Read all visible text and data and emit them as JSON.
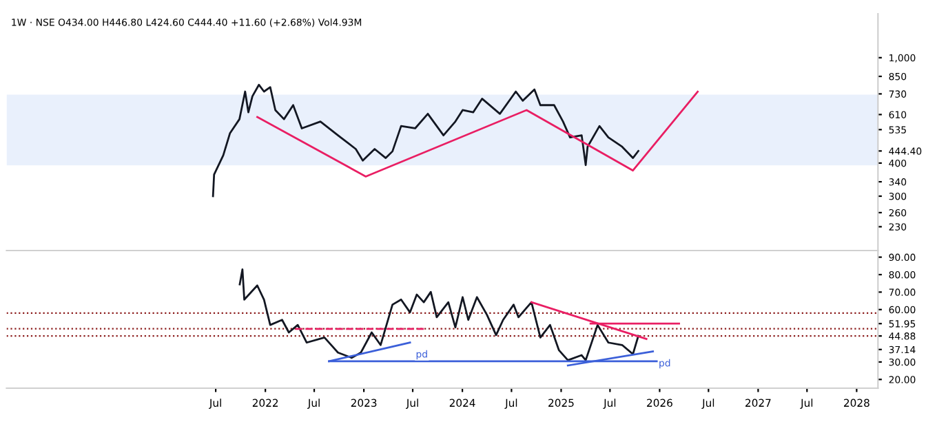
{
  "chart_data": [
    {
      "type": "line",
      "annotations": [
        "1W · NSE O434.00 H446.80 L424.60 C444.40 +11.60 (+2.68%) Vol4.93M"
      ],
      "log": "y",
      "xlim": [
        "2019-05-18",
        "2028-03-20"
      ],
      "ylim": [
        187,
        1465
      ],
      "yticks": [
        230,
        260,
        300,
        340,
        400,
        {
          "value": 444.4,
          "label": "444.40"
        },
        535,
        610,
        730,
        850,
        {
          "value": 1000,
          "label": "1,000"
        }
      ],
      "tick_labels": "y",
      "grid": false,
      "legend": false,
      "bands": [
        {
          "axis": "y",
          "from": 392,
          "to": 725,
          "color": "#dbe6fa"
        }
      ],
      "series": [
        {
          "color": "#131722",
          "x": [
            "2021-06-21",
            "2021-06-25",
            "2021-07-29",
            "2021-08-23",
            "2021-09-27",
            "2021-10-18",
            "2021-10-30",
            "2021-11-14",
            "2021-12-08",
            "2021-12-27",
            "2022-01-19",
            "2022-02-07",
            "2022-03-11",
            "2022-04-14",
            "2022-05-16",
            "2022-07-24",
            "2022-09-27",
            "2022-12-02",
            "2022-12-28",
            "2023-02-10",
            "2023-03-23",
            "2023-04-17",
            "2023-05-19",
            "2023-07-10",
            "2023-08-26",
            "2023-10-23",
            "2023-12-06",
            "2024-01-02",
            "2024-02-10",
            "2024-03-14",
            "2024-05-19",
            "2024-07-17",
            "2024-08-12",
            "2024-09-24",
            "2024-10-16",
            "2024-12-06",
            "2025-01-08",
            "2025-02-03",
            "2025-03-18",
            "2025-04-02",
            "2025-04-09",
            "2025-05-23",
            "2025-06-25",
            "2025-08-15",
            "2025-09-24",
            "2025-10-14"
          ],
          "values": [
            300,
            362,
            428,
            519,
            586,
            745,
            622,
            715,
            790,
            745,
            774,
            634,
            586,
            662,
            541,
            574,
            509,
            452,
            409,
            452,
            418,
            443,
            552,
            541,
            614,
            509,
            574,
            634,
            622,
            700,
            614,
            745,
            688,
            759,
            662,
            662,
            574,
            500,
            509,
            393,
            461,
            552,
            500,
            461,
            418,
            444.4
          ]
        },
        {
          "color": "#e91e63",
          "x": [
            "2021-12-02",
            "2023-01-08",
            "2024-08-26",
            "2025-09-24",
            "2026-05-22"
          ],
          "values": [
            597,
            356,
            634,
            375,
            744
          ]
        }
      ]
    },
    {
      "type": "line",
      "xlim": [
        "2019-05-18",
        "2028-03-20"
      ],
      "ylim": [
        15,
        93
      ],
      "xticks": [
        {
          "value": "2021-07-01",
          "label": "Jul"
        },
        {
          "value": "2022-01-01",
          "label": "2022"
        },
        {
          "value": "2022-07-01",
          "label": "Jul"
        },
        {
          "value": "2023-01-01",
          "label": "2023"
        },
        {
          "value": "2023-07-01",
          "label": "Jul"
        },
        {
          "value": "2024-01-01",
          "label": "2024"
        },
        {
          "value": "2024-07-01",
          "label": "Jul"
        },
        {
          "value": "2025-01-01",
          "label": "2025"
        },
        {
          "value": "2025-07-01",
          "label": "Jul"
        },
        {
          "value": "2026-01-01",
          "label": "2026"
        },
        {
          "value": "2026-07-01",
          "label": "Jul"
        },
        {
          "value": "2027-01-01",
          "label": "2027"
        },
        {
          "value": "2027-07-01",
          "label": "Jul"
        },
        {
          "value": "2028-01-01",
          "label": "2028"
        }
      ],
      "yticks": [
        {
          "value": 20,
          "label": "20.00"
        },
        {
          "value": 30,
          "label": "30.00"
        },
        {
          "value": 37.14,
          "label": "37.14"
        },
        {
          "value": 44.88,
          "label": "44.88"
        },
        {
          "value": 51.95,
          "label": "51.95"
        },
        {
          "value": 60,
          "label": "60.00"
        },
        {
          "value": 70,
          "label": "70.00"
        },
        {
          "value": 80,
          "label": "80.00"
        },
        {
          "value": 90,
          "label": "90.00"
        }
      ],
      "grid": false,
      "legend": false,
      "ref_lines": [
        {
          "axis": "y",
          "value": 58,
          "color": "#8b1a1a",
          "line_style": "dotted"
        },
        {
          "axis": "y",
          "value": 49,
          "color": "#8b1a1a",
          "line_style": "dotted"
        },
        {
          "axis": "y",
          "value": 44.88,
          "color": "#8b1a1a",
          "line_style": "dotted"
        }
      ],
      "annotations": [
        {
          "text": "pd",
          "x": "2023-06-21",
          "y": 41.1
        },
        {
          "text": "pd",
          "x": "2025-12-07",
          "y": 36
        }
      ],
      "series": [
        {
          "color": "#131722",
          "x": [
            "2021-09-28",
            "2021-10-08",
            "2021-10-15",
            "2021-12-02",
            "2021-12-27",
            "2022-01-19",
            "2022-03-04",
            "2022-03-29",
            "2022-05-01",
            "2022-06-03",
            "2022-08-08",
            "2022-09-27",
            "2022-11-17",
            "2022-12-21",
            "2023-01-30",
            "2023-03-04",
            "2023-04-17",
            "2023-05-19",
            "2023-06-21",
            "2023-07-16",
            "2023-08-11",
            "2023-09-06",
            "2023-09-28",
            "2023-11-10",
            "2023-12-06",
            "2024-01-02",
            "2024-01-23",
            "2024-02-24",
            "2024-04-01",
            "2024-05-05",
            "2024-05-31",
            "2024-07-09",
            "2024-07-27",
            "2024-09-13",
            "2024-10-16",
            "2024-11-21",
            "2024-12-24",
            "2025-01-26",
            "2025-03-18",
            "2025-04-02",
            "2025-05-16",
            "2025-06-25",
            "2025-08-15",
            "2025-09-24",
            "2025-10-14"
          ],
          "values": [
            74.4,
            83,
            65.7,
            73.8,
            65.7,
            51.2,
            54.1,
            46.9,
            51.2,
            41.1,
            44,
            35.4,
            32.4,
            35.4,
            46.9,
            39.7,
            62.8,
            65.7,
            58.4,
            68.6,
            64.2,
            70.1,
            55.6,
            64.2,
            49.8,
            67.1,
            54.1,
            67.1,
            57,
            45.4,
            54.1,
            62.8,
            55.6,
            64.2,
            44,
            51.2,
            36.7,
            31,
            33.9,
            31,
            51.2,
            41.1,
            39.7,
            34.5,
            44.9
          ]
        },
        {
          "color": "#3b5fd9",
          "x": [
            "2022-08-25",
            "2023-06-21"
          ],
          "values": [
            30.4,
            41.1
          ]
        },
        {
          "color": "#3b5fd9",
          "x": [
            "2025-01-26",
            "2025-12-07"
          ],
          "values": [
            28,
            36
          ]
        },
        {
          "color": "#e91e63",
          "x": [
            "2024-09-13",
            "2025-11-13"
          ],
          "values": [
            64.2,
            43.2
          ]
        },
        {
          "color": "#e91e63",
          "x": [
            "2025-04-20",
            "2026-03-14"
          ],
          "values": [
            52,
            52
          ]
        },
        {
          "color": "#e91e63",
          "line_style": "dashed",
          "x": [
            "2022-04-22",
            "2023-08-11"
          ],
          "values": [
            48.9,
            48.9
          ]
        },
        {
          "color": "#3b5fd9",
          "x": [
            "2022-08-25",
            "2026-02-06"
          ],
          "values": [
            30.4,
            30.4
          ]
        }
      ]
    }
  ]
}
